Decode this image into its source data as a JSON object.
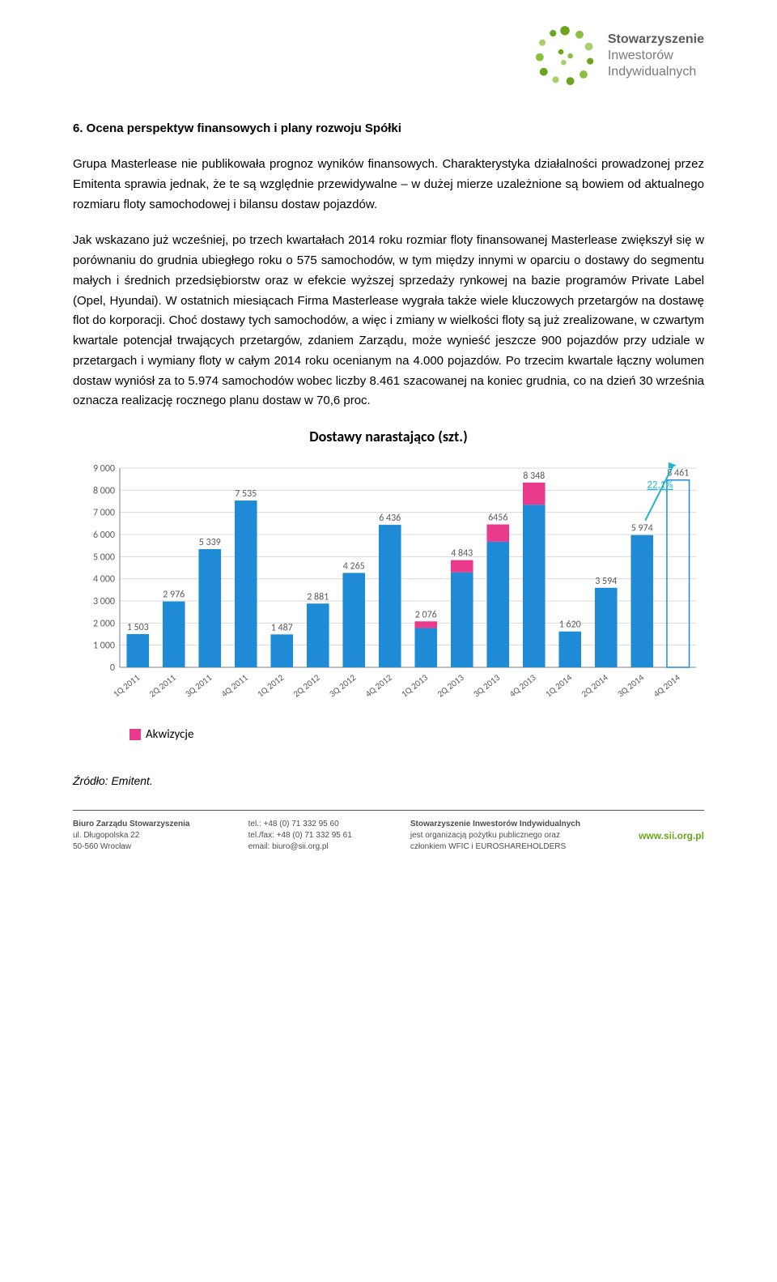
{
  "brand": {
    "line1": "Stowarzyszenie",
    "line2": "Inwestorów",
    "line3": "Indywidualnych"
  },
  "section_title": "6.  Ocena perspektyw finansowych i plany rozwoju Spółki",
  "para1": "Grupa Masterlease nie publikowała prognoz wyników finansowych. Charakterystyka działalności prowadzonej przez Emitenta sprawia jednak, że te są względnie przewidywalne – w dużej mierze uzależnione są bowiem od aktualnego rozmiaru floty samochodowej i bilansu dostaw pojazdów.",
  "para2": "Jak wskazano już wcześniej, po trzech kwartałach 2014 roku rozmiar floty finansowanej Masterlease zwiększył się w porównaniu do grudnia ubiegłego roku o 575 samochodów, w tym między innymi w oparciu o dostawy do segmentu małych i średnich przedsiębiorstw oraz w efekcie wyższej sprzedaży rynkowej na bazie programów Private Label (Opel, Hyundai). W ostatnich miesiącach Firma Masterlease wygrała także wiele kluczowych przetargów na dostawę flot do korporacji. Choć dostawy tych samochodów, a więc i zmiany w wielkości floty są już zrealizowane, w czwartym kwartale potencjał trwających przetargów, zdaniem Zarządu, może wynieść jeszcze 900 pojazdów przy udziale w przetargach i wymiany floty w całym 2014 roku ocenianym na 4.000 pojazdów. Po trzecim kwartale łączny wolumen dostaw wyniósł za to 5.974 samochodów wobec liczby 8.461 szacowanej na koniec grudnia, co na dzień 30 września oznacza realizację rocznego planu dostaw w 70,6 proc.",
  "chart": {
    "title": "Dostawy narastająco (szt.)",
    "categories": [
      "1Q 2011",
      "2Q 2011",
      "3Q 2011",
      "4Q 2011",
      "1Q 2012",
      "2Q 2012",
      "3Q 2012",
      "4Q 2012",
      "1Q 2013",
      "2Q 2013",
      "3Q 2013",
      "4Q 2013",
      "1Q 2014",
      "2Q 2014",
      "3Q 2014",
      "4Q 2014"
    ],
    "values": [
      1503,
      2976,
      5339,
      7535,
      1487,
      2881,
      4265,
      6436,
      2076,
      4843,
      6456,
      8348,
      1620,
      3594,
      5974,
      8461
    ],
    "acquisitions": [
      0,
      0,
      0,
      0,
      0,
      0,
      0,
      0,
      300,
      550,
      780,
      1000,
      0,
      0,
      0,
      0
    ],
    "outline_only": [
      false,
      false,
      false,
      false,
      false,
      false,
      false,
      false,
      false,
      false,
      false,
      false,
      false,
      false,
      false,
      true
    ],
    "value_labels": [
      "1 503",
      "2 976",
      "5 339",
      "7 535",
      "1 487",
      "2 881",
      "4 265",
      "6 436",
      "2 076",
      "4 843",
      "6456",
      "8 348",
      "1 620",
      "3 594",
      "5 974",
      "8 461"
    ],
    "ylim": [
      0,
      9000
    ],
    "ytick_step": 1000,
    "ytick_labels": [
      "0",
      "1 000",
      "2 000",
      "3 000",
      "4 000",
      "5 000",
      "6 000",
      "7 000",
      "8 000",
      "9 000"
    ],
    "colors": {
      "bar": "#1f8bd6",
      "acq": "#e93a8c",
      "outline": "#1f8bd6",
      "grid": "#d9d9d9",
      "axis": "#808080",
      "label": "#595959",
      "arrow": "#22b3c9"
    },
    "arrow_label": "22,1%",
    "legend_label": "Akwizycje"
  },
  "source": "Źródło: Emitent.",
  "footer": {
    "col1": {
      "l1": "Biuro Zarządu Stowarzyszenia",
      "l2": "ul. Długopolska 22",
      "l3": "50-560 Wrocław"
    },
    "col2": {
      "l1": "tel.: +48 (0) 71 332 95 60",
      "l2": "tel./fax: +48 (0) 71 332 95 61",
      "l3": "email: biuro@sii.org.pl"
    },
    "col3": {
      "l1": "Stowarzyszenie Inwestorów Indywidualnych",
      "l2": "jest organizacją pożytku publicznego oraz",
      "l3": "członkiem WFIC i EUROSHAREHOLDERS"
    },
    "url": "www.sii.org.pl"
  }
}
